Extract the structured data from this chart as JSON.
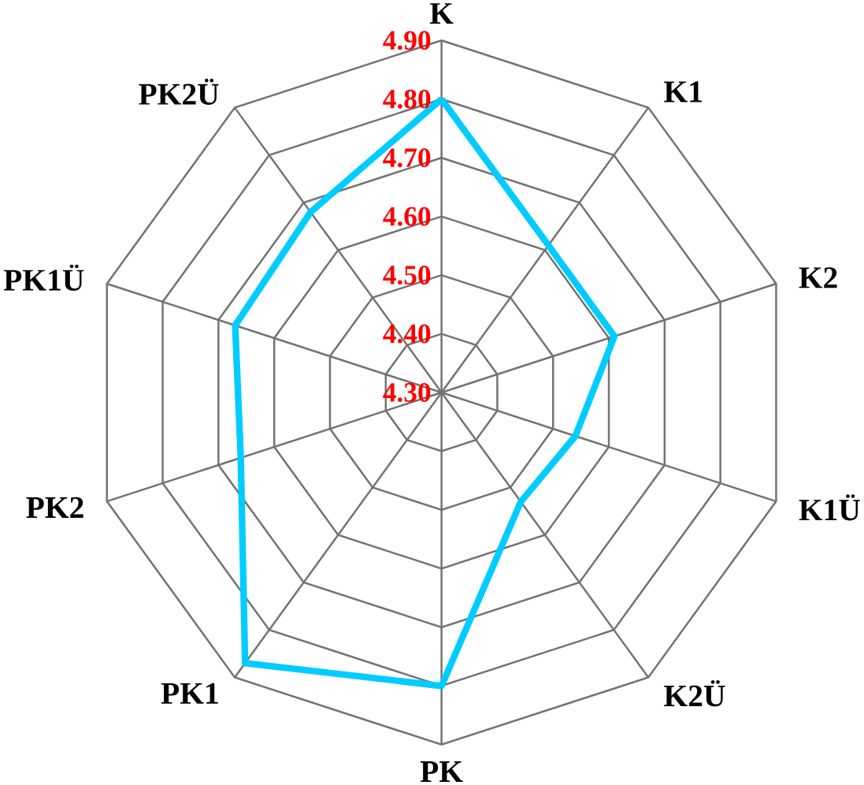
{
  "chart_data": {
    "type": "radar",
    "categories": [
      "K",
      "K1",
      "K2",
      "K1Ü",
      "K2Ü",
      "PK",
      "PK1",
      "PK2",
      "PK1Ü",
      "PK2Ü"
    ],
    "series": [
      {
        "color": "#00ccff",
        "values": [
          4.8,
          4.61,
          4.61,
          4.54,
          4.53,
          4.8,
          4.87,
          4.66,
          4.67,
          4.68
        ]
      }
    ],
    "ylim": [
      4.3,
      4.9
    ],
    "yticks": [
      {
        "value": 4.3,
        "label": "4.30"
      },
      {
        "value": 4.4,
        "label": "4.40"
      },
      {
        "value": 4.5,
        "label": "4.50"
      },
      {
        "value": 4.6,
        "label": "4.60"
      },
      {
        "value": 4.7,
        "label": "4.70"
      },
      {
        "value": 4.8,
        "label": "4.80"
      },
      {
        "value": 4.9,
        "label": "4.90"
      }
    ],
    "grid": true
  }
}
